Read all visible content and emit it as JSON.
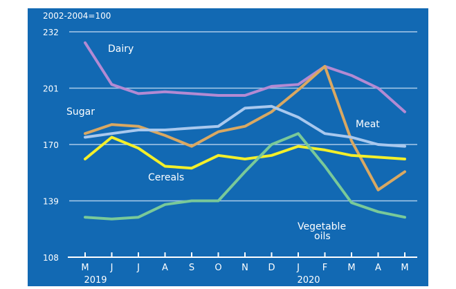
{
  "chart_data": {
    "type": "line",
    "index_note": "2002-2004=100",
    "categories": [
      "M",
      "J",
      "J",
      "A",
      "S",
      "O",
      "N",
      "D",
      "J",
      "F",
      "M",
      "A",
      "M"
    ],
    "year_labels": [
      {
        "label": "2019",
        "category_index": 0
      },
      {
        "label": "2020",
        "category_index": 8
      }
    ],
    "y_ticks": [
      108,
      139,
      170,
      201,
      232
    ],
    "ylim": [
      108,
      232
    ],
    "grid": true,
    "legend": "inline labels",
    "series": [
      {
        "name": "Dairy",
        "color": "#b38ad3",
        "values": [
          226,
          203,
          198,
          199,
          198,
          197,
          197,
          202,
          203,
          213,
          208,
          201,
          188
        ]
      },
      {
        "name": "Meat",
        "color": "#d9a862",
        "values": [
          176,
          181,
          180,
          175,
          169,
          177,
          180,
          188,
          200,
          213,
          172,
          145,
          155
        ]
      },
      {
        "name": "Sugar",
        "color": "#a8c8ee",
        "values": [
          174,
          176,
          178,
          178,
          179,
          180,
          190,
          191,
          185,
          176,
          174,
          170,
          169
        ]
      },
      {
        "name": "Cereals",
        "color": "#f3ef2a",
        "values": [
          162,
          174,
          168,
          158,
          157,
          164,
          162,
          164,
          169,
          167,
          164,
          163,
          162
        ]
      },
      {
        "name": "Vegetable oils",
        "color": "#79c999",
        "values": [
          130,
          129,
          130,
          137,
          139,
          139,
          155,
          170,
          176,
          158,
          138,
          133,
          130
        ]
      }
    ],
    "series_labels": [
      {
        "text": "Dairy",
        "color": "#ffffff"
      },
      {
        "text": "Sugar",
        "color": "#ffffff"
      },
      {
        "text": "Meat",
        "color": "#ffffff"
      },
      {
        "text": "Cereals",
        "color": "#ffffff"
      },
      {
        "text": "Vegetable",
        "color": "#ffffff"
      },
      {
        "text": "oils",
        "color": "#ffffff"
      }
    ],
    "background_color": "#1269b3",
    "grid_color": "#a9cbea",
    "text_color": "#ffffff"
  }
}
